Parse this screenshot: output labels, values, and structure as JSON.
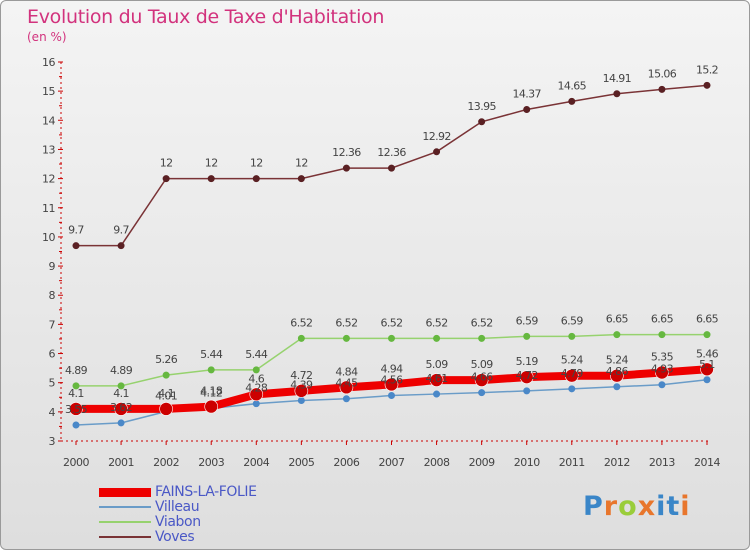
{
  "header": {
    "title": "Evolution du Taux de Taxe d'Habitation",
    "subtitle": "(en %)"
  },
  "logo": {
    "text": "Proxiti",
    "colors": [
      "#3a86c8",
      "#e8762c",
      "#9acd3a",
      "#e8762c",
      "#3a86c8",
      "#3a86c8",
      "#e8762c"
    ]
  },
  "chart_data": {
    "type": "line",
    "categories": [
      "2000",
      "2001",
      "2002",
      "2003",
      "2004",
      "2005",
      "2006",
      "2007",
      "2008",
      "2009",
      "2010",
      "2011",
      "2012",
      "2013",
      "2014"
    ],
    "ylim": [
      3,
      16
    ],
    "yticks": [
      3,
      4,
      5,
      6,
      7,
      8,
      9,
      10,
      11,
      12,
      13,
      14,
      15,
      16
    ],
    "grid": false,
    "legend_position": "bottom-left",
    "series": [
      {
        "name": "Voves",
        "color": "#7a3336",
        "marker_color": "#5a2023",
        "width": 1.5,
        "values": [
          9.7,
          9.7,
          12,
          12,
          12,
          12,
          12.36,
          12.36,
          12.92,
          13.95,
          14.37,
          14.65,
          14.91,
          15.06,
          15.2
        ],
        "labels": [
          "9.7",
          "9.7",
          "12",
          "12",
          "12",
          "12",
          "12.36",
          "12.36",
          "12.92",
          "13.95",
          "14.37",
          "14.65",
          "14.91",
          "15.06",
          "15.2"
        ]
      },
      {
        "name": "Viabon",
        "color": "#96d26e",
        "marker_color": "#66b840",
        "width": 1.5,
        "values": [
          4.89,
          4.89,
          5.26,
          5.44,
          5.44,
          6.52,
          6.52,
          6.52,
          6.52,
          6.52,
          6.59,
          6.59,
          6.65,
          6.65,
          6.65
        ],
        "labels": [
          "4.89",
          "4.89",
          "5.26",
          "5.44",
          "5.44",
          "6.52",
          "6.52",
          "6.52",
          "6.52",
          "6.52",
          "6.59",
          "6.59",
          "6.65",
          "6.65",
          "6.65"
        ]
      },
      {
        "name": "Villeau",
        "color": "#6a9cc8",
        "marker_color": "#4a88c8",
        "width": 1.5,
        "values": [
          3.55,
          3.62,
          4.01,
          4.12,
          4.28,
          4.39,
          4.45,
          4.56,
          4.61,
          4.66,
          4.72,
          4.79,
          4.86,
          4.93,
          5.1
        ],
        "labels": [
          "3.55",
          "3.62",
          "4.01",
          "4.12",
          "4.28",
          "4.39",
          "4.45",
          "4.56",
          "4.61",
          "4.66",
          "4.72",
          "4.79",
          "4.86",
          "4.93",
          "5.1"
        ]
      },
      {
        "name": "FAINS-LA-FOLIE",
        "color": "#ee0000",
        "marker_color": "#cc0000",
        "width": 8,
        "values": [
          4.1,
          4.1,
          4.1,
          4.18,
          4.6,
          4.72,
          4.84,
          4.94,
          5.09,
          5.09,
          5.19,
          5.24,
          5.24,
          5.35,
          5.46
        ],
        "labels": [
          "4.1",
          "4.1",
          "4.1",
          "4.18",
          "4.6",
          "4.72",
          "4.84",
          "4.94",
          "5.09",
          "5.09",
          "5.19",
          "5.24",
          "5.24",
          "5.35",
          "5.46"
        ]
      }
    ],
    "legend": [
      "FAINS-LA-FOLIE",
      "Villeau",
      "Viabon",
      "Voves"
    ]
  }
}
